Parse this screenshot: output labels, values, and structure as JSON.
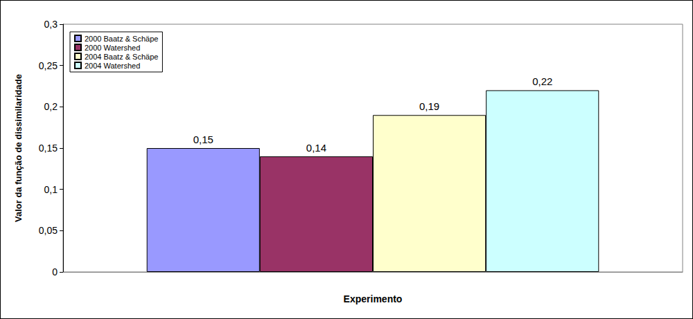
{
  "chart_data": {
    "type": "bar",
    "categories": [
      null
    ],
    "x_label": "Experimento",
    "y_label": "Valor da função de dissimilaridade",
    "series": [
      {
        "name": "2000 Baatz & Schäpe",
        "color": "#9999ff",
        "values": [
          0.15
        ],
        "value_labels": [
          "0,15"
        ]
      },
      {
        "name": "2000 Watershed",
        "color": "#993366",
        "values": [
          0.14
        ],
        "value_labels": [
          "0,14"
        ]
      },
      {
        "name": "2004 Baatz & Schäpe",
        "color": "#ffffcc",
        "values": [
          0.19
        ],
        "value_labels": [
          "0,19"
        ]
      },
      {
        "name": "2004 Watershed",
        "color": "#ccffff",
        "values": [
          0.22
        ],
        "value_labels": [
          "0,22"
        ]
      }
    ],
    "ylim": [
      0,
      0.3
    ],
    "yticks": [
      0,
      {
        "value": 0.05,
        "label": "0,05"
      },
      {
        "value": 0.1,
        "label": "0,1"
      },
      {
        "value": 0.15,
        "label": "0,15"
      },
      {
        "value": 0.2,
        "label": "0,2"
      },
      {
        "value": 0.25,
        "label": "0,25"
      },
      {
        "value": 0.3,
        "label": "0,3"
      }
    ],
    "grid": false,
    "legend": "upper left",
    "data_labels": true
  }
}
